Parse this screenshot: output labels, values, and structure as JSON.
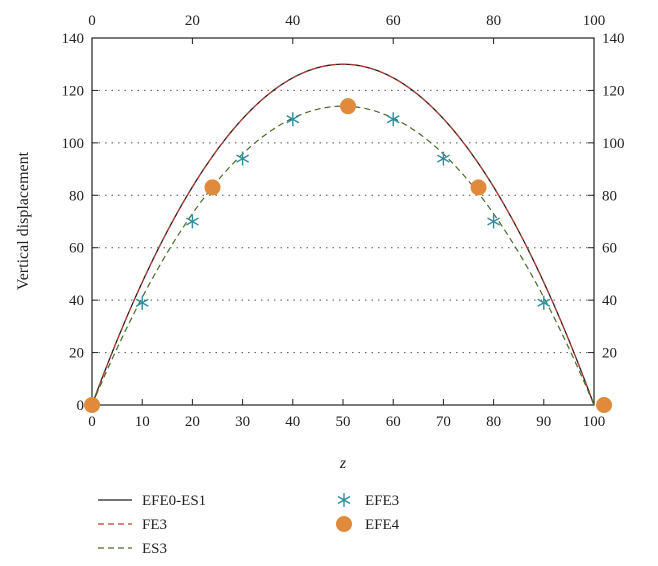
{
  "chart_data": {
    "type": "line",
    "xlabel": "z",
    "ylabel": "Vertical displacement",
    "xlim": [
      0,
      100
    ],
    "ylim": [
      0,
      140
    ],
    "x_ticks": [
      0,
      10,
      20,
      30,
      40,
      50,
      60,
      70,
      80,
      90,
      100
    ],
    "x_ticks_top": [
      0,
      20,
      40,
      60,
      80,
      100
    ],
    "y_ticks": [
      0,
      20,
      40,
      60,
      80,
      100,
      120,
      140
    ],
    "grid": "horizontal dotted",
    "legend_position": "bottom",
    "series": [
      {
        "name": "EFE0-ES1",
        "style": "solid line",
        "color": "#222222",
        "x": [
          0,
          10,
          20,
          30,
          40,
          50,
          60,
          70,
          80,
          90,
          100
        ],
        "y": [
          0,
          47,
          83,
          109,
          124,
          130,
          124,
          109,
          83,
          47,
          0
        ]
      },
      {
        "name": "FE3",
        "style": "dashed line",
        "color": "#c0392b",
        "x": [
          0,
          10,
          20,
          30,
          40,
          50,
          60,
          70,
          80,
          90,
          100
        ],
        "y": [
          0,
          47,
          83,
          109,
          124,
          130,
          124,
          109,
          83,
          47,
          0
        ]
      },
      {
        "name": "ES3",
        "style": "dashed line",
        "color": "#4a6b2a",
        "x": [
          0,
          10,
          20,
          30,
          40,
          50,
          60,
          70,
          80,
          90,
          100
        ],
        "y": [
          0,
          39,
          70,
          94,
          109,
          114,
          109,
          94,
          70,
          39,
          0
        ]
      },
      {
        "name": "EFE3",
        "style": "asterisk markers",
        "color": "#2f8fa0",
        "x": [
          10,
          20,
          30,
          40,
          60,
          70,
          80,
          90
        ],
        "y": [
          39,
          70,
          94,
          109,
          109,
          94,
          70,
          39
        ]
      },
      {
        "name": "EFE4",
        "style": "filled circle markers",
        "color": "#e08a3c",
        "x": [
          0,
          24,
          51,
          77,
          102
        ],
        "y": [
          0,
          83,
          114,
          83,
          0
        ]
      }
    ]
  }
}
